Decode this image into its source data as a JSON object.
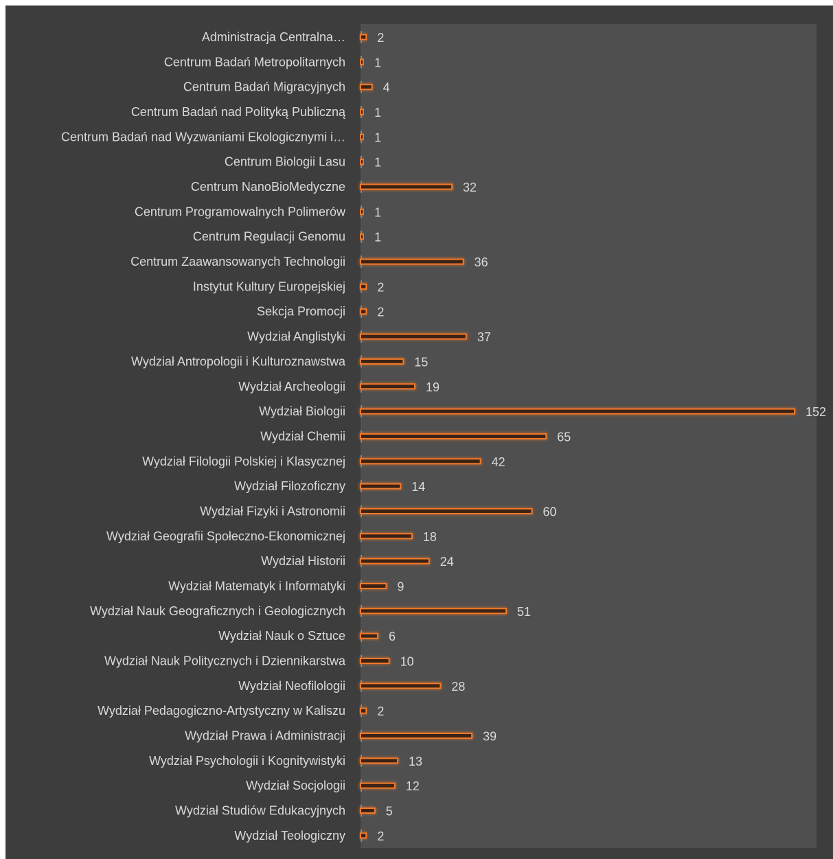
{
  "chart_data": {
    "type": "bar",
    "orientation": "horizontal",
    "title": "",
    "xlabel": "",
    "ylabel": "",
    "legend": false,
    "grid": false,
    "colors": {
      "background": "#3d3d3d",
      "plot_area": "#4f4f4f",
      "bar": "#f07a2b",
      "text": "#d9d9d9"
    },
    "xlim": [
      0,
      152
    ],
    "categories": [
      "Administracja Centralna…",
      "Centrum Badań Metropolitarnych",
      "Centrum Badań Migracyjnych",
      "Centrum Badań nad Polityką Publiczną",
      "Centrum Badań nad Wyzwaniami Ekologicznymi i…",
      "Centrum Biologii Lasu",
      "Centrum NanoBioMedyczne",
      "Centrum Programowalnych Polimerów",
      "Centrum Regulacji Genomu",
      "Centrum Zaawansowanych Technologii",
      "Instytut Kultury Europejskiej",
      "Sekcja Promocji",
      "Wydział Anglistyki",
      "Wydział Antropologii i Kulturoznawstwa",
      "Wydział Archeologii",
      "Wydział Biologii",
      "Wydział Chemii",
      "Wydział Filologii Polskiej i Klasycznej",
      "Wydział Filozoficzny",
      "Wydział Fizyki i Astronomii",
      "Wydział Geografii Społeczno-Ekonomicznej",
      "Wydział Historii",
      "Wydział Matematyk i Informatyki",
      "Wydział Nauk Geograficznych i Geologicznych",
      "Wydział Nauk o Sztuce",
      "Wydział Nauk Politycznych i Dziennikarstwa",
      "Wydział Neofilologii",
      "Wydział Pedagogiczno-Artystyczny w Kaliszu",
      "Wydział Prawa i Administracji",
      "Wydział Psychologii i Kognitywistyki",
      "Wydział Socjologii",
      "Wydział Studiów Edukacyjnych",
      "Wydział Teologiczny"
    ],
    "values": [
      2,
      1,
      4,
      1,
      1,
      1,
      32,
      1,
      1,
      36,
      2,
      2,
      37,
      15,
      19,
      152,
      65,
      42,
      14,
      60,
      18,
      24,
      9,
      51,
      6,
      10,
      28,
      2,
      39,
      13,
      12,
      5,
      2
    ],
    "value_labels": [
      "2",
      "1",
      "4",
      "1",
      "1",
      "1",
      "32",
      "1",
      "1",
      "36",
      "2",
      "2",
      "37",
      "15",
      "19",
      "152",
      "65",
      "42",
      "14",
      "60",
      "18",
      "24",
      "9",
      "51",
      "6",
      "10",
      "28",
      "2",
      "39",
      "13",
      "12",
      "5",
      "2"
    ]
  }
}
